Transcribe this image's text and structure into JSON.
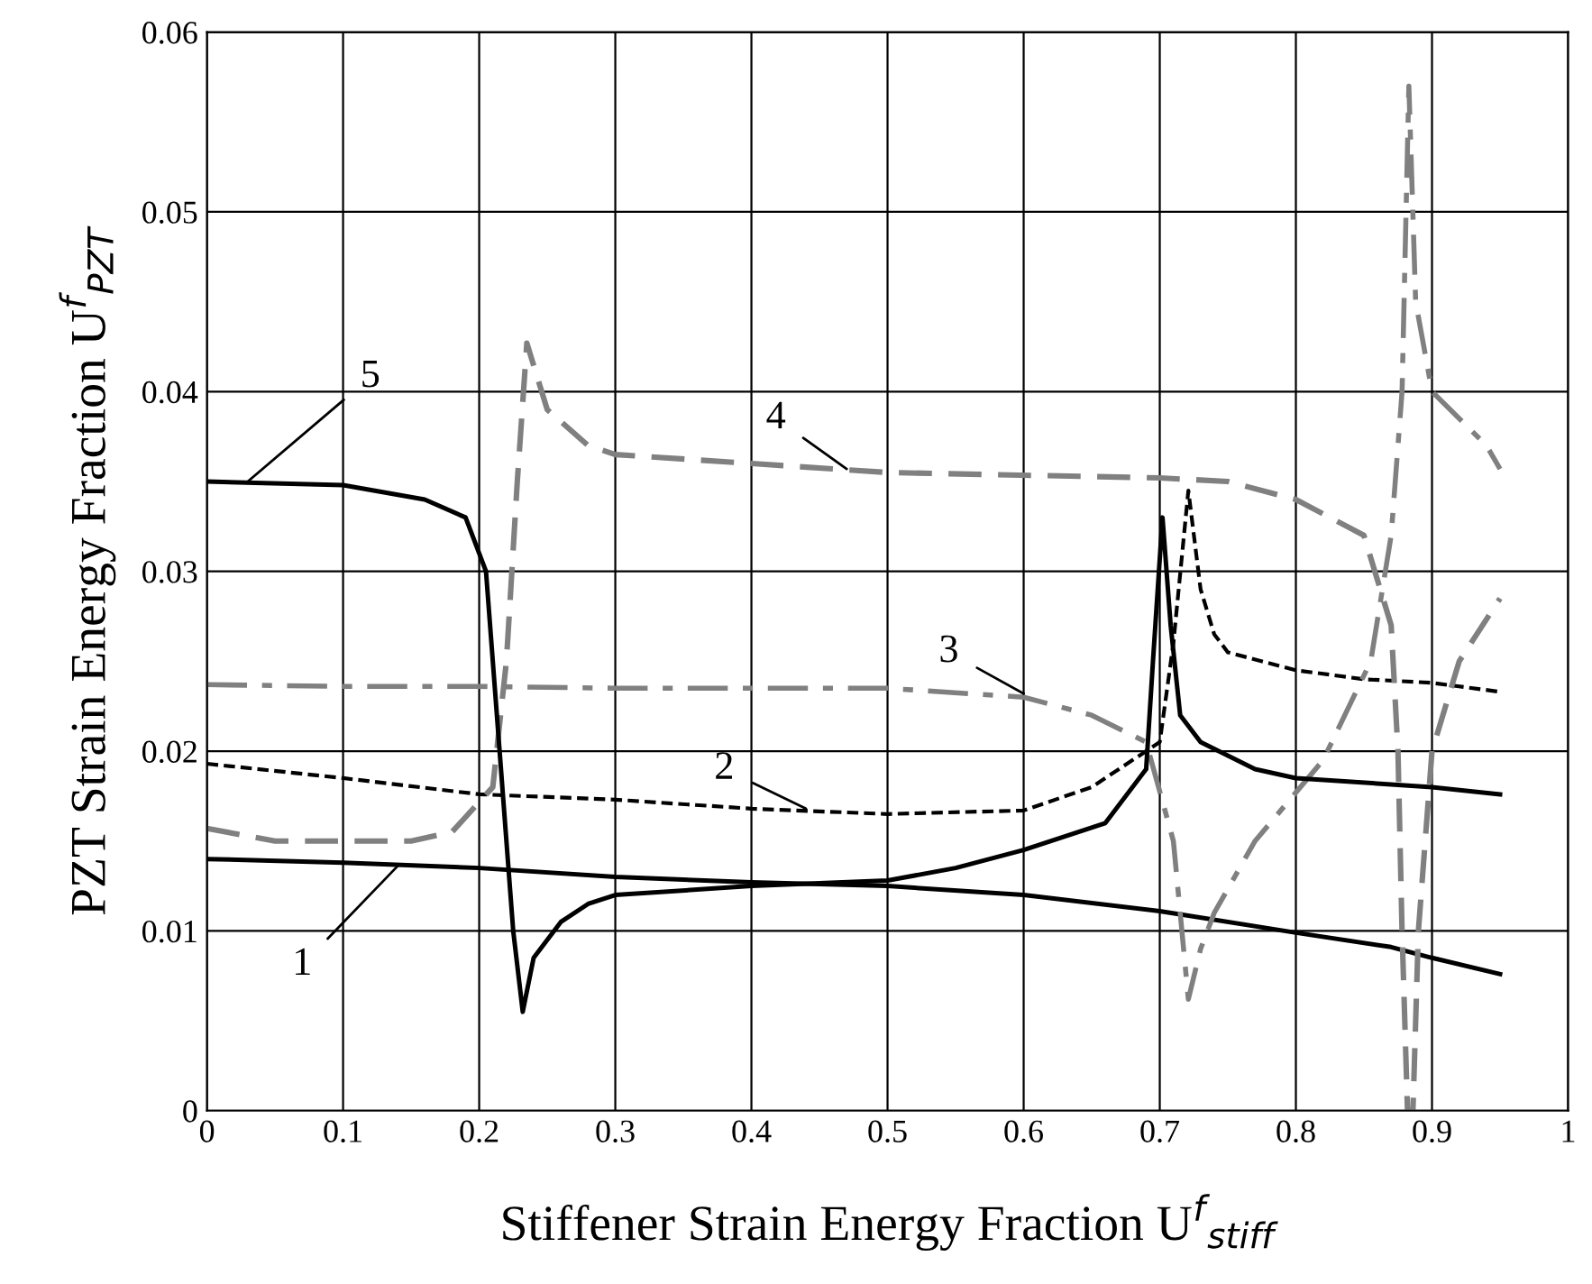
{
  "chart_data": {
    "type": "line",
    "xlabel": "Stiffener Strain Energy Fraction U$^{f}$$_{stiff}$",
    "ylabel": "PZT Strain Energy Fraction U$^{f}$$_{PZT}$",
    "xlim": [
      0,
      1
    ],
    "ylim": [
      0,
      0.06
    ],
    "xticks": [
      0,
      0.1,
      0.2,
      0.3,
      0.4,
      0.5,
      0.6,
      0.7,
      0.8,
      0.9,
      1
    ],
    "yticks": [
      0,
      0.01,
      0.02,
      0.03,
      0.04,
      0.05,
      0.06
    ],
    "grid": true,
    "legend": false,
    "series": [
      {
        "color": "#000000",
        "line_style": "solid",
        "x": [
          0,
          0.1,
          0.2,
          0.3,
          0.4,
          0.5,
          0.6,
          0.7,
          0.8,
          0.87,
          0.9,
          0.95
        ],
        "values": [
          0.014,
          0.0138,
          0.0135,
          0.013,
          0.0127,
          0.0125,
          0.012,
          0.0111,
          0.0099,
          0.0091,
          0.0085,
          0.0076
        ]
      },
      {
        "color": "#000000",
        "line_style": "dotted",
        "x": [
          0,
          0.1,
          0.2,
          0.3,
          0.4,
          0.5,
          0.6,
          0.65,
          0.69,
          0.7,
          0.71,
          0.721,
          0.73,
          0.74,
          0.75,
          0.8,
          0.85,
          0.9,
          0.95
        ],
        "values": [
          0.0193,
          0.0185,
          0.0176,
          0.0173,
          0.0168,
          0.0165,
          0.0167,
          0.018,
          0.02,
          0.0205,
          0.026,
          0.0345,
          0.029,
          0.0265,
          0.0255,
          0.0245,
          0.024,
          0.0238,
          0.0233
        ]
      },
      {
        "color": "#808080",
        "line_style": "dashdot",
        "x": [
          0,
          0.1,
          0.2,
          0.3,
          0.4,
          0.5,
          0.6,
          0.65,
          0.69,
          0.71,
          0.721,
          0.73,
          0.74,
          0.77,
          0.82,
          0.855,
          0.87,
          0.878,
          0.883,
          0.888,
          0.9,
          0.94,
          0.95
        ],
        "values": [
          0.0237,
          0.0236,
          0.0236,
          0.0235,
          0.0235,
          0.0235,
          0.023,
          0.022,
          0.0205,
          0.015,
          0.0062,
          0.009,
          0.011,
          0.015,
          0.0195,
          0.025,
          0.032,
          0.04,
          0.057,
          0.045,
          0.04,
          0.037,
          0.0357
        ]
      },
      {
        "color": "#808080",
        "line_style": "dashed",
        "x": [
          0,
          0.05,
          0.15,
          0.18,
          0.21,
          0.22,
          0.228,
          0.235,
          0.25,
          0.28,
          0.3,
          0.4,
          0.5,
          0.7,
          0.75,
          0.8,
          0.85,
          0.87,
          0.875,
          0.878,
          0.882,
          0.886,
          0.89,
          0.9,
          0.92,
          0.95
        ],
        "values": [
          0.0157,
          0.015,
          0.015,
          0.0155,
          0.018,
          0.025,
          0.035,
          0.0427,
          0.039,
          0.037,
          0.0365,
          0.036,
          0.0355,
          0.0352,
          0.035,
          0.034,
          0.032,
          0.027,
          0.02,
          0.01,
          0,
          0,
          0.01,
          0.02,
          0.025,
          0.0285
        ]
      },
      {
        "color": "#000000",
        "line_style": "solid",
        "x": [
          0,
          0.1,
          0.16,
          0.19,
          0.205,
          0.215,
          0.225,
          0.232,
          0.24,
          0.26,
          0.28,
          0.3,
          0.4,
          0.5,
          0.55,
          0.6,
          0.66,
          0.69,
          0.695,
          0.702,
          0.708,
          0.715,
          0.73,
          0.77,
          0.8,
          0.9,
          0.95
        ],
        "values": [
          0.035,
          0.0348,
          0.034,
          0.033,
          0.03,
          0.02,
          0.01,
          0.0055,
          0.0085,
          0.0105,
          0.0115,
          0.012,
          0.0125,
          0.0128,
          0.0135,
          0.0145,
          0.016,
          0.019,
          0.025,
          0.033,
          0.027,
          0.022,
          0.0205,
          0.019,
          0.0185,
          0.018,
          0.0176
        ]
      }
    ],
    "annotations": [
      {
        "text": "1",
        "x": 0.14,
        "y": 0.0136
      },
      {
        "text": "2",
        "x": 0.44,
        "y": 0.0168
      },
      {
        "text": "3",
        "x": 0.6,
        "y": 0.0232
      },
      {
        "text": "4",
        "x": 0.47,
        "y": 0.0357
      },
      {
        "text": "5",
        "x": 0.03,
        "y": 0.035
      }
    ]
  }
}
